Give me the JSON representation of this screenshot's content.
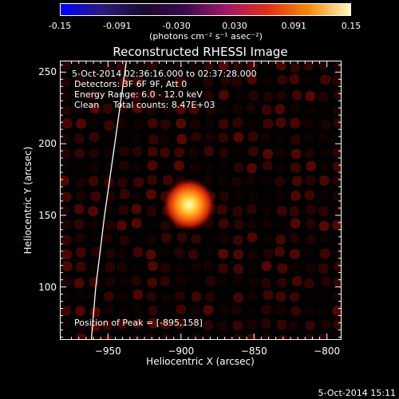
{
  "colorbar": {
    "tick_labels": [
      "-0.15",
      "-0.091",
      "-0.030",
      "0.030",
      "0.091",
      "0.15"
    ],
    "tick_values": [
      -0.15,
      -0.091,
      -0.03,
      0.03,
      0.091,
      0.15
    ],
    "units": "(photons cm⁻² s⁻¹ asec⁻²)",
    "colors": [
      "#0000ff",
      "#2a1a7a",
      "#1a0a2e",
      "#3a0a4a",
      "#a0186a",
      "#e0301a",
      "#f58a0a",
      "#fff8c0"
    ]
  },
  "info": {
    "time": "5-Oct-2014 02:36:16.000 to 02:37:28.000",
    "detectors": "Detectors: 3F 6F 9F, Att 0",
    "energy": "Energy Range: 6.0 - 12.0 keV",
    "clean": "Clean     Total counts: 8.47E+03",
    "peak": "Position of Peak = [-895,158]"
  },
  "footer": {
    "date": "5-Oct-2014 15:11"
  },
  "chart_data": {
    "type": "heatmap",
    "title": "Reconstructed RHESSI Image",
    "xlabel": "Heliocentric X (arcsec)",
    "ylabel": "Heliocentric Y (arcsec)",
    "xlim": [
      -983,
      -790
    ],
    "ylim": [
      63,
      258
    ],
    "x_ticks": [
      -950,
      -900,
      -850,
      -800
    ],
    "y_ticks": [
      100,
      150,
      200,
      250
    ],
    "x_tick_labels": [
      "−950",
      "−900",
      "−850",
      "−800"
    ],
    "y_tick_labels": [
      "100",
      "150",
      "200",
      "250"
    ],
    "peak": {
      "x": -895,
      "y": 158
    },
    "limb": [
      [
        -962,
        63
      ],
      [
        -959,
        100
      ],
      [
        -953,
        150
      ],
      [
        -946,
        200
      ],
      [
        -938,
        258
      ]
    ]
  }
}
